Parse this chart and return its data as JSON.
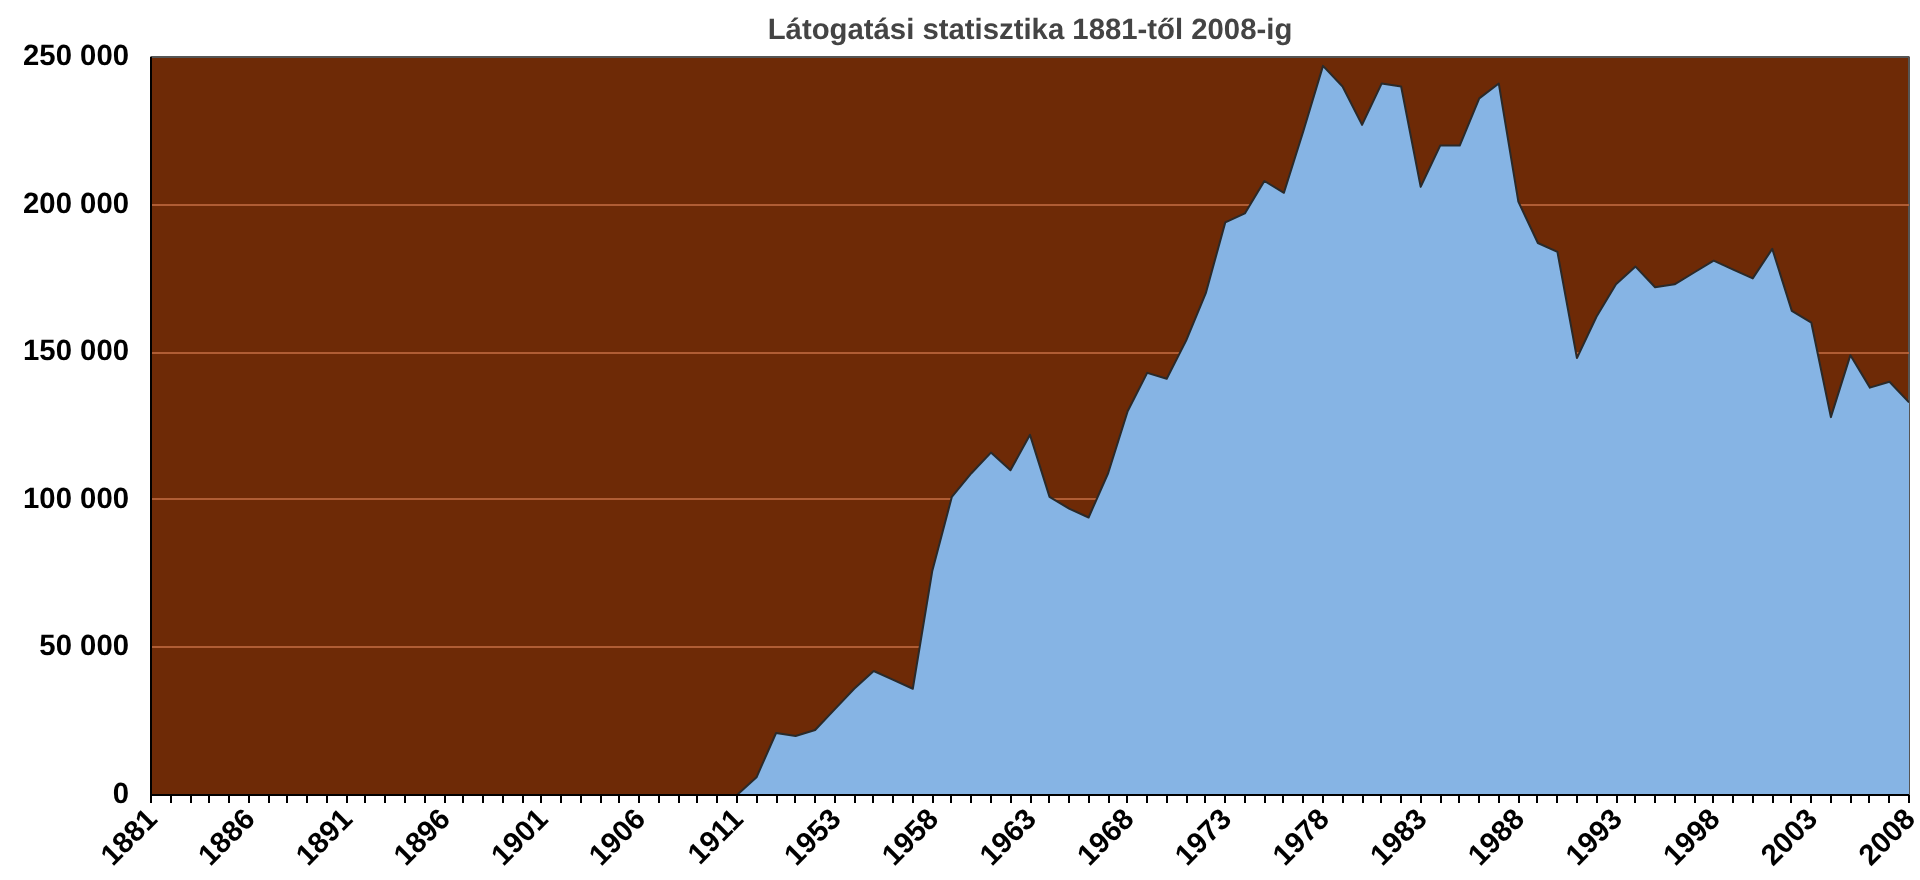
{
  "chart_data": {
    "type": "area",
    "title": "Látogatási statisztika 1881-től 2008-ig",
    "categories": [
      "1881",
      null,
      null,
      null,
      null,
      "1886",
      null,
      null,
      null,
      null,
      "1891",
      null,
      null,
      null,
      null,
      "1896",
      null,
      null,
      null,
      null,
      "1901",
      null,
      null,
      null,
      null,
      "1906",
      null,
      null,
      null,
      null,
      "1911",
      null,
      null,
      null,
      null,
      "1953",
      null,
      null,
      null,
      null,
      "1958",
      null,
      null,
      null,
      null,
      "1963",
      null,
      null,
      null,
      null,
      "1968",
      null,
      null,
      null,
      null,
      "1973",
      null,
      null,
      null,
      null,
      "1978",
      null,
      null,
      null,
      null,
      "1983",
      null,
      null,
      null,
      null,
      "1988",
      null,
      null,
      null,
      null,
      "1993",
      null,
      null,
      null,
      null,
      "1998",
      null,
      null,
      null,
      null,
      "2003",
      null,
      null,
      null,
      null,
      "2008"
    ],
    "series": [
      {
        "color": "#86b4e4",
        "values": [
          0,
          0,
          0,
          0,
          0,
          0,
          0,
          0,
          0,
          0,
          0,
          0,
          0,
          0,
          0,
          0,
          0,
          0,
          0,
          0,
          0,
          0,
          0,
          0,
          0,
          0,
          0,
          0,
          0,
          0,
          0,
          6000,
          21000,
          20000,
          22000,
          29000,
          36000,
          42000,
          39000,
          36000,
          76000,
          101000,
          109000,
          116000,
          110000,
          122000,
          101000,
          97000,
          94000,
          109000,
          130000,
          143000,
          141000,
          154000,
          170000,
          194000,
          197000,
          208000,
          204000,
          225000,
          247000,
          240000,
          227000,
          241000,
          240000,
          206000,
          220000,
          220000,
          236000,
          241000,
          201000,
          187000,
          184000,
          148000,
          162000,
          173000,
          179000,
          172000,
          173000,
          177000,
          181000,
          178000,
          175000,
          185000,
          164000,
          160000,
          128000,
          149000,
          138000,
          140000,
          133000
        ]
      }
    ],
    "ylim": [
      0,
      250000
    ],
    "yticks": [
      {
        "value": 0,
        "label": "0"
      },
      {
        "value": 50000,
        "label": "50 000"
      },
      {
        "value": 100000,
        "label": "100 000"
      },
      {
        "value": 150000,
        "label": "150 000"
      },
      {
        "value": 200000,
        "label": "200 000"
      },
      {
        "value": 250000,
        "label": "250 000"
      }
    ],
    "grid": "y"
  }
}
